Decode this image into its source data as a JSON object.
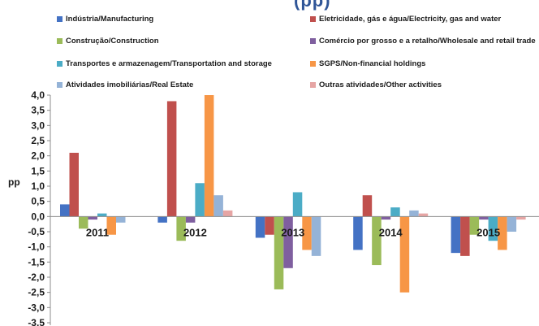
{
  "title_fragment": "(pp)",
  "chart_data": {
    "type": "bar",
    "ylabel": "pp",
    "xlabel": "",
    "ylim": [
      -3.5,
      4.0
    ],
    "ytick_step": 0.5,
    "categories": [
      "2011",
      "2012",
      "2013",
      "2014",
      "2015"
    ],
    "series": [
      {
        "name": "Indústria/Manufacturing",
        "color": "#4472C4",
        "values": [
          0.4,
          -0.2,
          -0.7,
          -1.1,
          -1.2
        ]
      },
      {
        "name": "Eletricidade, gás e água/Electricity, gas and water",
        "color": "#C0504D",
        "values": [
          2.1,
          3.8,
          -0.6,
          0.7,
          -1.3
        ]
      },
      {
        "name": "Construção/Construction",
        "color": "#9BBB59",
        "values": [
          -0.4,
          -0.8,
          -2.4,
          -1.6,
          -0.6
        ]
      },
      {
        "name": "Comércio por grosso e a retalho/Wholesale and retail trade",
        "color": "#7F5F9F",
        "values": [
          -0.1,
          -0.2,
          -1.7,
          -0.1,
          -0.1
        ]
      },
      {
        "name": "Transportes e armazenagem/Transportation and storage",
        "color": "#4BACC6",
        "values": [
          0.1,
          1.1,
          0.8,
          0.3,
          -0.8
        ]
      },
      {
        "name": "SGPS/Non-financial holdings",
        "color": "#F79646",
        "values": [
          -0.6,
          4.0,
          -1.1,
          -2.5,
          -1.1
        ]
      },
      {
        "name": "Atividades imobiliárias/Real Estate",
        "color": "#95B3D7",
        "values": [
          -0.2,
          0.7,
          -1.3,
          0.2,
          -0.5
        ]
      },
      {
        "name": "Outras atividades/Other activities",
        "color": "#E6A5A4",
        "values": [
          0.0,
          0.2,
          0.0,
          0.1,
          -0.1
        ]
      }
    ]
  }
}
